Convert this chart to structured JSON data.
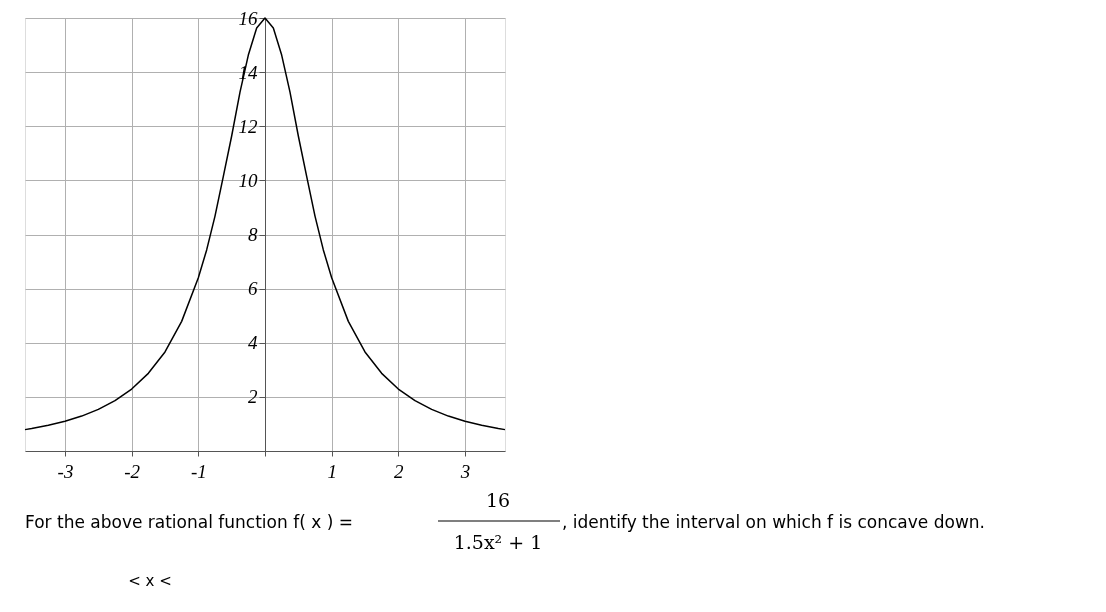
{
  "chart_data": {
    "type": "line",
    "x": [
      -3.6,
      -3.5,
      -3.25,
      -3,
      -2.75,
      -2.5,
      -2.25,
      -2,
      -1.75,
      -1.5,
      -1.25,
      -1,
      -0.875,
      -0.75,
      -0.625,
      -0.5,
      -0.375,
      -0.25,
      -0.125,
      0,
      0.125,
      0.25,
      0.375,
      0.5,
      0.625,
      0.75,
      0.875,
      1,
      1.25,
      1.5,
      1.75,
      2,
      2.25,
      2.5,
      2.75,
      3,
      3.25,
      3.5,
      3.6
    ],
    "series": [
      {
        "color": "#000000",
        "values": [
          0.79,
          0.83,
          0.95,
          1.1,
          1.29,
          1.54,
          1.86,
          2.29,
          2.87,
          3.66,
          4.79,
          6.4,
          7.43,
          8.68,
          10.15,
          11.64,
          13.26,
          14.63,
          15.63,
          16,
          15.63,
          14.63,
          13.26,
          11.64,
          10.15,
          8.68,
          7.43,
          6.4,
          4.79,
          3.66,
          2.87,
          2.29,
          1.86,
          1.54,
          1.29,
          1.1,
          0.95,
          0.83,
          0.79
        ]
      }
    ],
    "xlim": [
      -3.6,
      3.6
    ],
    "ylim": [
      0,
      16
    ],
    "xticks": [
      -3,
      -2,
      -1,
      {
        "value": 0,
        "label": null
      },
      1,
      2,
      3
    ],
    "yticks": [
      2,
      4,
      6,
      8,
      10,
      12,
      14,
      16
    ],
    "grid": true,
    "marker": "none",
    "line_style": "solid",
    "annotations": [
      "For the above rational function f( x ) =",
      "16",
      "1.5x² + 1",
      ", identify the interval on which f is concave down.",
      "< x <"
    ]
  }
}
